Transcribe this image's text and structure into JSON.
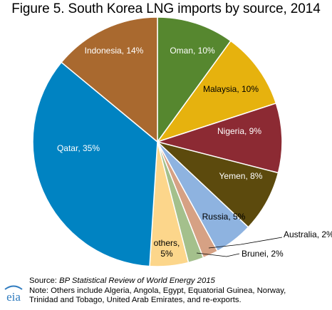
{
  "chart_data": {
    "type": "pie",
    "title": "Figure 5. South Korea LNG imports by source, 2014",
    "slices": [
      {
        "name": "Oman",
        "value": 10,
        "label": "Oman, 10%",
        "color": "#56872f",
        "text_color": "#ffffff"
      },
      {
        "name": "Malaysia",
        "value": 10,
        "label": "Malaysia, 10%",
        "color": "#e6b20e",
        "text_color": "#000000"
      },
      {
        "name": "Nigeria",
        "value": 9,
        "label": "Nigeria, 9%",
        "color": "#8c2a33",
        "text_color": "#ffffff"
      },
      {
        "name": "Yemen",
        "value": 8,
        "label": "Yemen, 8%",
        "color": "#5c4a0d",
        "text_color": "#ffffff"
      },
      {
        "name": "Russia",
        "value": 5,
        "label": "Russia, 5%",
        "color": "#8eb3e0",
        "text_color": "#000000"
      },
      {
        "name": "Australia",
        "value": 2,
        "label": "Australia, 2%",
        "color": "#d6a184",
        "text_color": "#000000"
      },
      {
        "name": "Brunei",
        "value": 2,
        "label": "Brunei, 2%",
        "color": "#a4c08c",
        "text_color": "#000000"
      },
      {
        "name": "others",
        "value": 5,
        "label_line1": "others,",
        "label_line2": "5%",
        "color": "#fcd68b",
        "text_color": "#000000"
      },
      {
        "name": "Qatar",
        "value": 35,
        "label": "Qatar, 35%",
        "color": "#0083c2",
        "text_color": "#ffffff"
      },
      {
        "name": "Indonesia",
        "value": 14,
        "label": "Indonesia, 14%",
        "color": "#a9692f",
        "text_color": "#ffffff"
      }
    ]
  },
  "footer": {
    "source_prefix": "Source: ",
    "source_title": "BP Statistical Review of World Energy 2015",
    "note_line1": "Note: Others include Algeria, Angola, Egypt, Equatorial Guinea, Norway,",
    "note_line2": "Trinidad and Tobago, United Arab Emirates, and re-exports.",
    "logo_text": "eia"
  }
}
